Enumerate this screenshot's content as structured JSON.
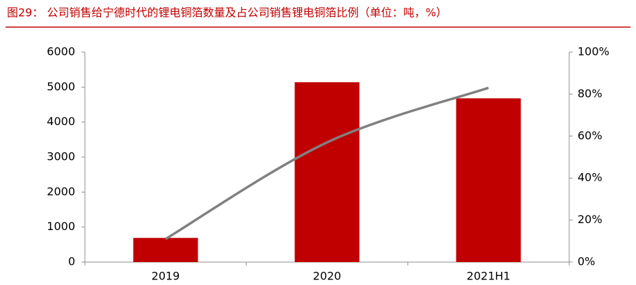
{
  "chart_data": {
    "type": "combo",
    "title": "图29： 公司销售给宁德时代的锂电铜箔数量及占公司销售锂电铜箔比例（单位：吨，%）",
    "categories": [
      "2019",
      "2020",
      "2021H1"
    ],
    "series": [
      {
        "type": "bar",
        "color": "#c00000",
        "values": [
          690,
          5140,
          4680
        ]
      },
      {
        "type": "line",
        "axis": "y2",
        "color": "#808080",
        "values": [
          11,
          57,
          83
        ]
      }
    ],
    "ylim": [
      0,
      6000
    ],
    "yticks": [
      0,
      1000,
      2000,
      3000,
      4000,
      5000,
      6000
    ],
    "y2lim": [
      0,
      100
    ],
    "y2ticks": [
      {
        "value": 0,
        "label": "0%"
      },
      {
        "value": 20,
        "label": "20%"
      },
      {
        "value": 40,
        "label": "40%"
      },
      {
        "value": 60,
        "label": "60%"
      },
      {
        "value": 80,
        "label": "80%"
      },
      {
        "value": 100,
        "label": "100%"
      }
    ],
    "grid": false
  }
}
